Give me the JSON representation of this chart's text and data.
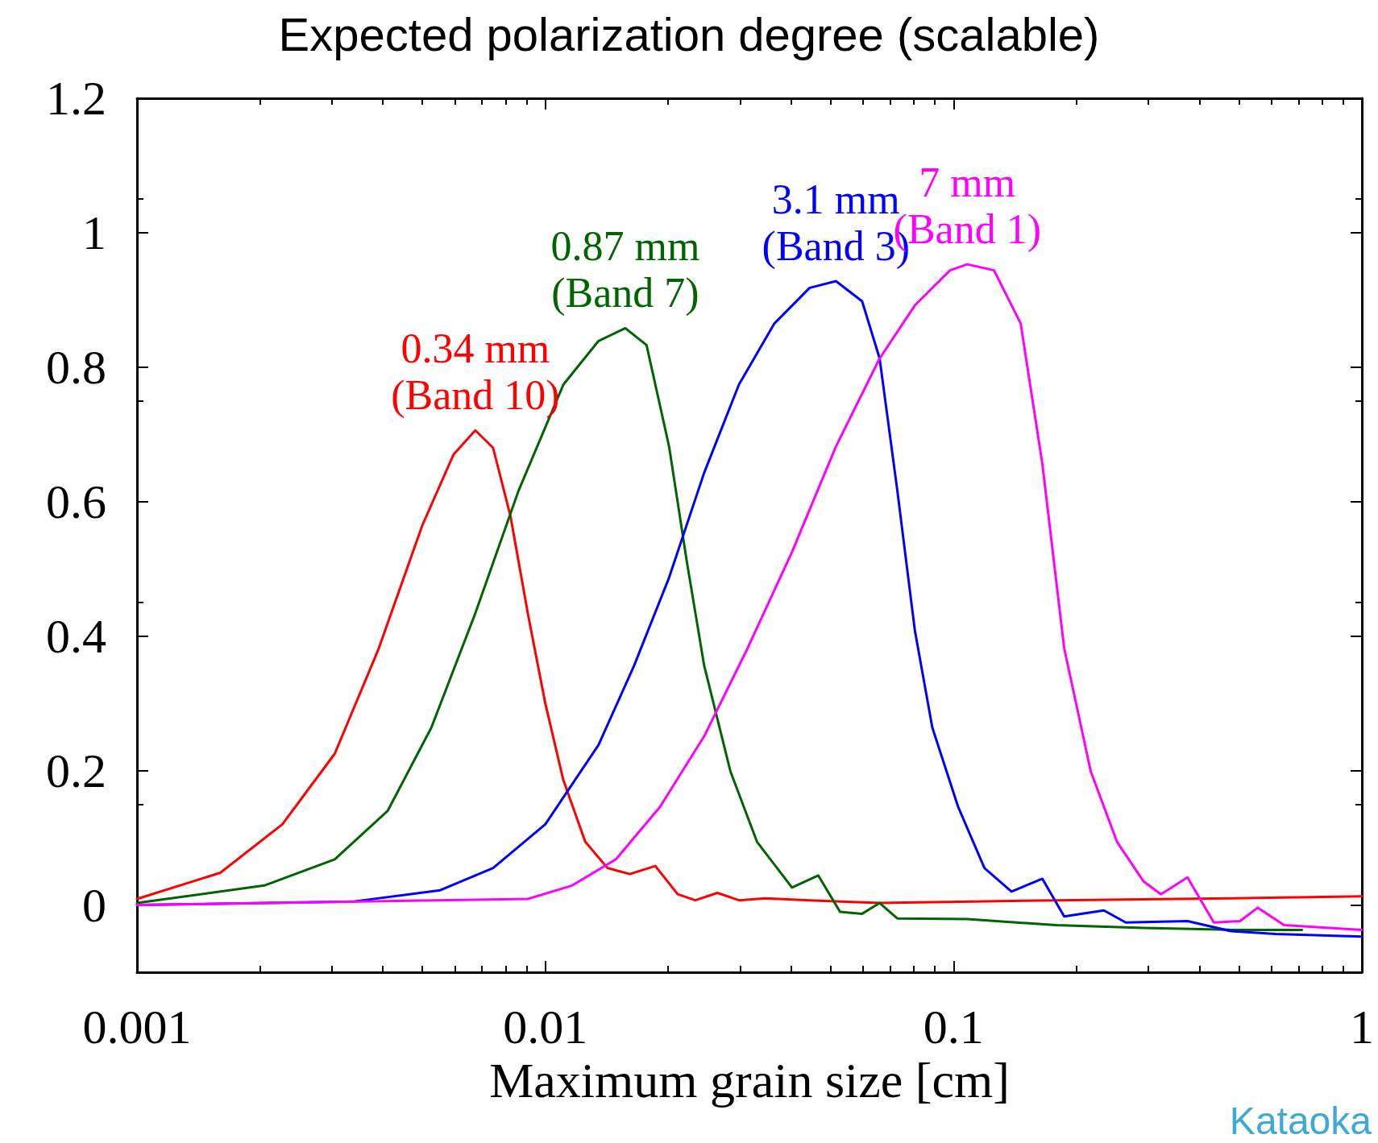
{
  "chart_data": {
    "type": "line",
    "title": "Expected polarization degree (scalable)",
    "xlabel": "Maximum grain size [cm]",
    "log": "x",
    "xlim": [
      0.001,
      1
    ],
    "xticks": [
      0.001,
      0.01,
      0.1,
      1
    ],
    "ylim": [
      -0.1,
      1.2
    ],
    "yticks": [
      0,
      0.2,
      0.4,
      0.6,
      0.8,
      1,
      1.2
    ],
    "grid": false,
    "legend": false,
    "marker": "none",
    "line_style": "solid",
    "annotations": [
      "Kataoka"
    ],
    "series": [
      {
        "name": "0.34 mm\n(Band 10)",
        "color": "#ff0000",
        "x": [
          0.001,
          0.0016,
          0.00227,
          0.00305,
          0.0039,
          0.005,
          0.00596,
          0.00674,
          0.00745,
          0.00822,
          0.00906,
          0.01,
          0.01107,
          0.01253,
          0.0142,
          0.0161,
          0.0186,
          0.0211,
          0.0233,
          0.0264,
          0.0298,
          0.0346,
          0.0444,
          0.0659,
          0.178,
          0.479,
          1
        ],
        "values": [
          0.009,
          0.048,
          0.12,
          0.225,
          0.38,
          0.565,
          0.67,
          0.706,
          0.68,
          0.578,
          0.434,
          0.3,
          0.186,
          0.094,
          0.055,
          0.046,
          0.058,
          0.016,
          0.007,
          0.018,
          0.007,
          0.01,
          0.007,
          0.003,
          0.007,
          0.01,
          0.013
        ]
      },
      {
        "name": "0.87 mm\n(Band 7)",
        "color": "#006400",
        "x": [
          0.001,
          0.00205,
          0.00305,
          0.00411,
          0.00526,
          0.00674,
          0.00861,
          0.01107,
          0.0135,
          0.0157,
          0.0177,
          0.0201,
          0.0222,
          0.0245,
          0.0284,
          0.033,
          0.0402,
          0.0466,
          0.0527,
          0.0597,
          0.0659,
          0.0728,
          0.108,
          0.178,
          0.292,
          0.479,
          0.713
        ],
        "values": [
          0.003,
          0.029,
          0.068,
          0.14,
          0.264,
          0.434,
          0.617,
          0.774,
          0.839,
          0.858,
          0.833,
          0.682,
          0.512,
          0.356,
          0.199,
          0.094,
          0.026,
          0.044,
          -0.01,
          -0.013,
          0.003,
          -0.02,
          -0.021,
          -0.03,
          -0.034,
          -0.037,
          -0.037
        ]
      },
      {
        "name": "3.1 mm\n(Band 3)",
        "color": "#0000ff",
        "x": [
          0.001,
          0.00337,
          0.00553,
          0.00745,
          0.01,
          0.0135,
          0.0165,
          0.0201,
          0.0245,
          0.0298,
          0.0364,
          0.0444,
          0.0515,
          0.0597,
          0.0659,
          0.0728,
          0.0804,
          0.0887,
          0.1026,
          0.119,
          0.1386,
          0.165,
          0.1866,
          0.2334,
          0.264,
          0.374,
          0.479,
          0.614,
          1
        ],
        "values": [
          0,
          0.005,
          0.022,
          0.055,
          0.12,
          0.238,
          0.356,
          0.487,
          0.643,
          0.774,
          0.865,
          0.918,
          0.928,
          0.898,
          0.813,
          0.617,
          0.408,
          0.264,
          0.146,
          0.055,
          0.02,
          0.039,
          -0.017,
          -0.008,
          -0.026,
          -0.024,
          -0.039,
          -0.043,
          -0.047
        ]
      },
      {
        "name": "7 mm\n(Band 1)",
        "color": "#ff00ff",
        "x": [
          0.001,
          0.00906,
          0.01164,
          0.0149,
          0.0191,
          0.0245,
          0.0313,
          0.0402,
          0.0515,
          0.0659,
          0.0804,
          0.098,
          0.108,
          0.1256,
          0.146,
          0.165,
          0.1866,
          0.2167,
          0.2513,
          0.292,
          0.322,
          0.374,
          0.434,
          0.503,
          0.556,
          0.645,
          1
        ],
        "values": [
          0,
          0.009,
          0.029,
          0.068,
          0.146,
          0.251,
          0.382,
          0.525,
          0.682,
          0.813,
          0.892,
          0.944,
          0.953,
          0.944,
          0.865,
          0.656,
          0.382,
          0.199,
          0.094,
          0.035,
          0.016,
          0.041,
          -0.026,
          -0.024,
          -0.004,
          -0.03,
          -0.037
        ]
      }
    ]
  }
}
